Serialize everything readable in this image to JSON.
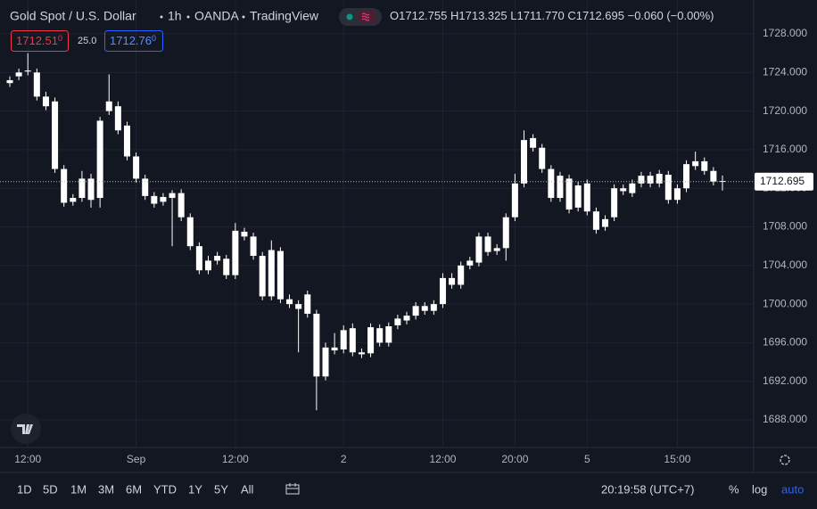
{
  "header": {
    "symbol": "Gold Spot / U.S. Dollar",
    "interval": "1h",
    "exchange": "OANDA",
    "source": "TradingView",
    "ohlc": [
      {
        "label": "O",
        "value": "1712.755"
      },
      {
        "label": "H",
        "value": "1713.325"
      },
      {
        "label": "L",
        "value": "1711.770"
      },
      {
        "label": "C",
        "value": "1712.695"
      }
    ],
    "change": "−0.060 (−0.00%)",
    "sell": {
      "price": "1712.51",
      "pip": "0"
    },
    "spread": "25.0",
    "buy": {
      "price": "1712.76",
      "pip": "0"
    }
  },
  "chart_data": {
    "type": "candlestick",
    "up_color": "#ffffff",
    "down_color": "#ffffff",
    "grid": true,
    "categories": [
      null,
      null,
      "12:00",
      null,
      null,
      null,
      null,
      null,
      null,
      null,
      null,
      null,
      null,
      null,
      "Sep",
      null,
      null,
      null,
      null,
      null,
      null,
      null,
      null,
      null,
      null,
      "12:00",
      null,
      null,
      null,
      null,
      null,
      null,
      null,
      null,
      null,
      null,
      null,
      "2",
      null,
      null,
      null,
      null,
      null,
      null,
      null,
      null,
      null,
      null,
      "12:00",
      null,
      null,
      null,
      null,
      null,
      null,
      null,
      "20:00",
      null,
      null,
      null,
      null,
      null,
      null,
      null,
      "5",
      null,
      null,
      null,
      null,
      null,
      null,
      null,
      null,
      null,
      "15:00",
      null,
      null,
      null,
      null,
      null
    ],
    "open": [
      1722.9,
      1723.6,
      1724.2,
      1724.0,
      1721.5,
      1721.0,
      1714.0,
      1711.0,
      1711.0,
      1713.0,
      1711.0,
      1720.0,
      1720.5,
      1718.5,
      1715.3,
      1713.0,
      1711.2,
      1710.6,
      1711.0,
      1711.5,
      1709.0,
      1706.0,
      1703.5,
      1704.5,
      1704.7,
      1703.0,
      1707.5,
      1707.0,
      1705.0,
      1700.8,
      1705.5,
      1700.5,
      1700.0,
      1701.0,
      1699.0,
      1692.5,
      1695.5,
      1695.3,
      1697.5,
      1695.0,
      1694.9,
      1697.5,
      1696.0,
      1697.8,
      1698.3,
      1698.8,
      1699.8,
      1699.3,
      1700.0,
      1702.7,
      1702.0,
      1704.0,
      1704.3,
      1707.0,
      1705.5,
      1705.8,
      1709.0,
      1712.5,
      1717.2,
      1716.2,
      1714.0,
      1711.0,
      1713.0,
      1710.0,
      1712.5,
      1709.6,
      1708.0,
      1709.0,
      1712.0,
      1711.5,
      1712.5,
      1713.3,
      1712.5,
      1713.4,
      1710.8,
      1712.0,
      1714.3,
      1714.8,
      1713.8,
      1712.755
    ],
    "high": [
      1723.6,
      1724.4,
      1726.0,
      1724.4,
      1722.0,
      1721.4,
      1714.4,
      1711.4,
      1713.8,
      1713.5,
      1719.4,
      1723.8,
      1721.0,
      1718.9,
      1715.7,
      1713.4,
      1711.6,
      1711.5,
      1711.8,
      1711.9,
      1709.4,
      1706.4,
      1705.0,
      1705.4,
      1705.1,
      1708.4,
      1707.9,
      1707.4,
      1705.4,
      1706.6,
      1705.9,
      1701.0,
      1700.4,
      1701.4,
      1699.4,
      1696.0,
      1697.0,
      1697.8,
      1698.0,
      1695.4,
      1698.0,
      1697.9,
      1698.1,
      1698.9,
      1699.2,
      1700.2,
      1700.2,
      1700.4,
      1703.2,
      1703.2,
      1704.4,
      1704.9,
      1707.4,
      1707.4,
      1706.2,
      1709.4,
      1713.5,
      1718.0,
      1717.6,
      1716.6,
      1714.4,
      1713.7,
      1713.4,
      1712.7,
      1712.9,
      1710.0,
      1709.2,
      1712.4,
      1712.4,
      1712.9,
      1713.7,
      1713.7,
      1713.9,
      1713.8,
      1712.4,
      1714.9,
      1715.8,
      1715.2,
      1714.2,
      1713.325
    ],
    "low": [
      1722.5,
      1723.2,
      1723.7,
      1721.1,
      1720.1,
      1713.6,
      1710.1,
      1710.2,
      1710.6,
      1710.0,
      1710.0,
      1719.6,
      1717.6,
      1714.9,
      1712.6,
      1710.8,
      1710.0,
      1710.2,
      1706.0,
      1708.6,
      1705.6,
      1703.1,
      1703.1,
      1704.1,
      1702.6,
      1702.6,
      1706.6,
      1704.6,
      1700.4,
      1700.4,
      1700.1,
      1699.6,
      1695.0,
      1698.6,
      1689.0,
      1692.1,
      1694.8,
      1694.9,
      1694.6,
      1694.4,
      1694.5,
      1695.6,
      1695.6,
      1697.4,
      1697.9,
      1698.4,
      1698.9,
      1698.9,
      1699.6,
      1701.6,
      1701.6,
      1703.6,
      1703.9,
      1705.0,
      1705.1,
      1704.5,
      1708.6,
      1712.1,
      1715.8,
      1713.6,
      1710.6,
      1710.6,
      1709.4,
      1709.6,
      1709.2,
      1707.3,
      1707.6,
      1708.6,
      1711.3,
      1711.1,
      1712.1,
      1712.1,
      1712.1,
      1710.4,
      1710.4,
      1711.6,
      1713.9,
      1713.4,
      1712.3,
      1711.77
    ],
    "close": [
      1723.2,
      1724.0,
      1724.1,
      1721.5,
      1720.5,
      1714.0,
      1710.5,
      1710.6,
      1713.0,
      1710.8,
      1719.0,
      1721.0,
      1718.0,
      1715.3,
      1713.0,
      1711.2,
      1710.4,
      1711.1,
      1711.5,
      1709.0,
      1706.0,
      1703.5,
      1704.5,
      1705.0,
      1703.0,
      1707.6,
      1707.0,
      1705.0,
      1700.8,
      1705.6,
      1700.5,
      1700.0,
      1699.5,
      1699.0,
      1692.5,
      1695.5,
      1695.2,
      1697.3,
      1695.0,
      1694.8,
      1697.6,
      1696.0,
      1697.7,
      1698.5,
      1698.8,
      1699.8,
      1699.3,
      1700.0,
      1702.7,
      1702.0,
      1704.0,
      1704.5,
      1707.0,
      1705.4,
      1705.8,
      1709.0,
      1712.5,
      1717.0,
      1716.2,
      1714.0,
      1711.0,
      1713.3,
      1709.8,
      1712.3,
      1709.6,
      1707.7,
      1708.8,
      1712.0,
      1711.7,
      1712.5,
      1713.3,
      1712.5,
      1713.5,
      1710.8,
      1712.0,
      1714.5,
      1714.8,
      1713.8,
      1712.7,
      1712.695
    ],
    "ylim": [
      1685.14,
      1731.51
    ],
    "yticks": [
      {
        "value": 1728,
        "label": "1728.000"
      },
      {
        "value": 1724,
        "label": "1724.000"
      },
      {
        "value": 1720,
        "label": "1720.000"
      },
      {
        "value": 1716,
        "label": "1716.000"
      },
      {
        "value": 1712,
        "label": "1712.000"
      },
      {
        "value": 1708,
        "label": "1708.000"
      },
      {
        "value": 1704,
        "label": "1704.000"
      },
      {
        "value": 1700,
        "label": "1700.000"
      },
      {
        "value": 1696,
        "label": "1696.000"
      },
      {
        "value": 1692,
        "label": "1692.000"
      },
      {
        "value": 1688,
        "label": "1688.000"
      }
    ],
    "last_price": {
      "value": 1712.695,
      "label": "1712.695"
    }
  },
  "toolbar": {
    "ranges": [
      "1D",
      "5D",
      "1M",
      "3M",
      "6M",
      "YTD",
      "1Y",
      "5Y",
      "All"
    ],
    "clock": "20:19:58 (UTC+7)",
    "percent": "%",
    "log": "log",
    "auto": "auto"
  }
}
